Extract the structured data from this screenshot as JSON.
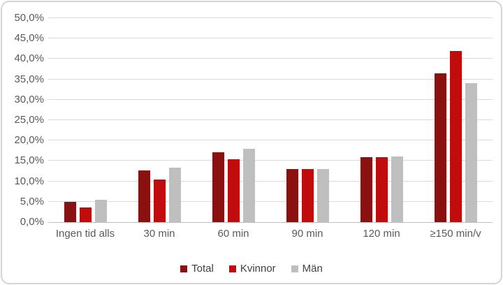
{
  "chart_data": {
    "type": "bar",
    "title": "",
    "categories": [
      "Ingen tid alls",
      "30 min",
      "60 min",
      "90 min",
      "120 min",
      "≥150 min/v"
    ],
    "series": [
      {
        "name": "Total",
        "color": "#8B1111",
        "values": [
          5.0,
          12.6,
          17.1,
          13.0,
          16.0,
          36.5
        ]
      },
      {
        "name": "Kvinnor",
        "color": "#C00C0C",
        "values": [
          3.6,
          10.4,
          15.4,
          13.0,
          15.9,
          41.9
        ]
      },
      {
        "name": "Män",
        "color": "#BFBFBF",
        "values": [
          5.5,
          13.4,
          18.0,
          13.0,
          16.1,
          34.0
        ]
      }
    ],
    "ylim": [
      0,
      50
    ],
    "y_tick_step": 5,
    "y_tick_labels": [
      "0,0%",
      "5,0%",
      "10,0%",
      "15,0%",
      "20,0%",
      "25,0%",
      "30,0%",
      "35,0%",
      "40,0%",
      "45,0%",
      "50,0%"
    ],
    "grid": true,
    "legend_position": "bottom",
    "colors": {
      "gridline": "#d9d9d9",
      "axis_line": "#bfbfbf",
      "tick_text": "#595959",
      "legend_text": "#404040",
      "card_border": "#d4d4d4",
      "background": "#ffffff"
    }
  }
}
